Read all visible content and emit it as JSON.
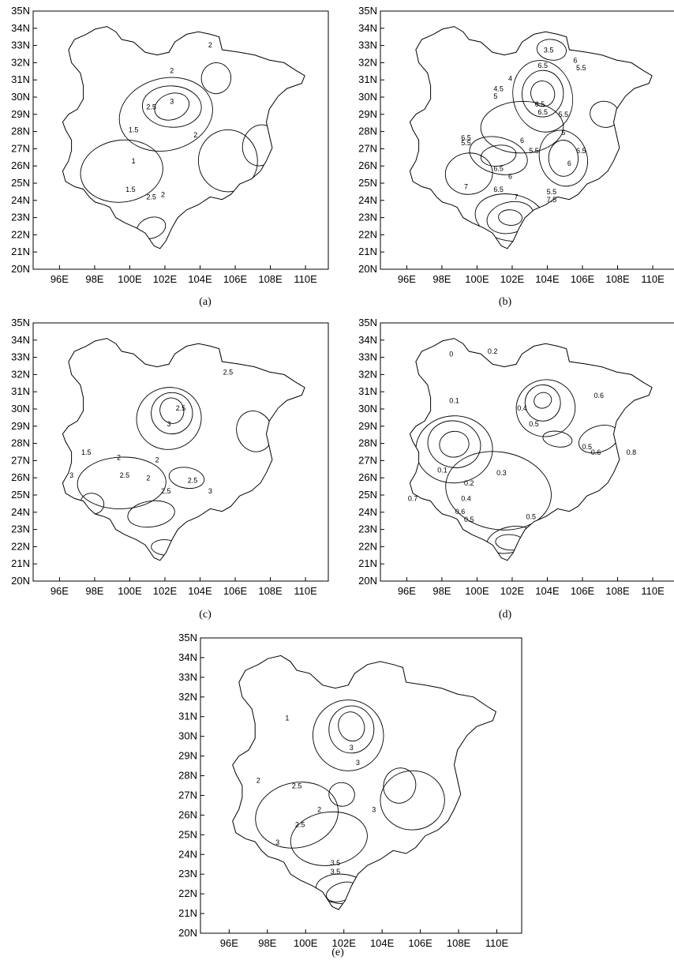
{
  "figure": {
    "lat_ticks": [
      "20N",
      "21N",
      "22N",
      "23N",
      "24N",
      "25N",
      "26N",
      "27N",
      "28N",
      "29N",
      "30N",
      "31N",
      "32N",
      "33N",
      "34N",
      "35N"
    ],
    "lon_ticks": [
      "96E",
      "98E",
      "100E",
      "102E",
      "104E",
      "106E",
      "108E",
      "110E"
    ],
    "panels": [
      {
        "id": "a",
        "caption": "(a)",
        "contour_labels": [
          "2",
          "2",
          "3",
          "2.5",
          "1.5",
          "2",
          "1",
          "1.5",
          "2",
          "2.5"
        ]
      },
      {
        "id": "b",
        "caption": "(b)",
        "contour_labels": [
          "3.5",
          "6",
          "5.5",
          "6.5",
          "4",
          "4.5",
          "5",
          "6.5",
          "6.5",
          "5.5",
          "5",
          "6.5",
          "5.5",
          "6",
          "6.5",
          "6",
          "7",
          "6.5",
          "7",
          "5.5",
          "7.5",
          "6",
          "6.5",
          "5.5"
        ]
      },
      {
        "id": "c",
        "caption": "(c)",
        "contour_labels": [
          "2.5",
          "2.5",
          "3",
          "1.5",
          "2",
          "2",
          "2.5",
          "2",
          "2.5",
          "3",
          "2.5",
          "3"
        ]
      },
      {
        "id": "d",
        "caption": "(d)",
        "contour_labels": [
          "0",
          "0.2",
          "0.1",
          "0.4",
          "0.6",
          "0.5",
          "0.5",
          "0.6",
          "0.8",
          "0.1",
          "0.2",
          "0.3",
          "0.4",
          "0.6",
          "0.7",
          "0.5",
          "0.5"
        ]
      },
      {
        "id": "e",
        "caption": "(e)",
        "contour_labels": [
          "1",
          "3",
          "3",
          "2",
          "2.5",
          "2",
          "3",
          "2.5",
          "3",
          "3.5",
          "3.5"
        ]
      }
    ]
  }
}
